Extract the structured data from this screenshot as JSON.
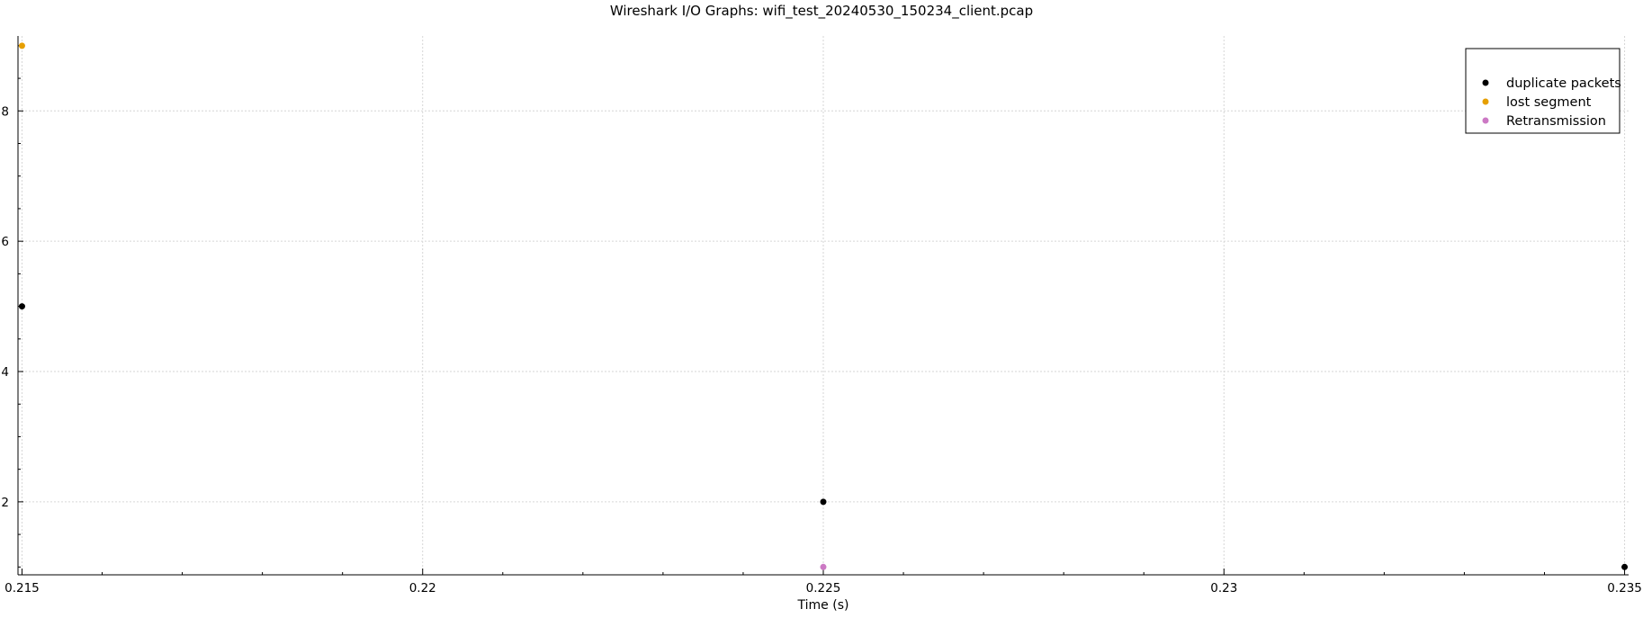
{
  "chart_data": {
    "type": "scatter",
    "title": "Wireshark I/O Graphs: wifi_test_20240530_150234_client.pcap",
    "xlabel": "Time (s)",
    "ylabel": "",
    "xlim": [
      0.21495,
      0.23505
    ],
    "ylim": [
      0.88,
      9.15
    ],
    "x_ticks": [
      0.215,
      0.22,
      0.225,
      0.23,
      0.235
    ],
    "x_tick_labels": [
      "0.215",
      "0.22",
      "0.225",
      "0.23",
      "0.235"
    ],
    "y_ticks": [
      2,
      4,
      6,
      8
    ],
    "y_tick_labels": [
      "2",
      "4",
      "6",
      "8"
    ],
    "grid": true,
    "legend_position": "top-right",
    "series": [
      {
        "name": "duplicate packets",
        "color": "#000000",
        "points": [
          [
            0.215,
            5
          ],
          [
            0.225,
            2
          ],
          [
            0.235,
            1
          ]
        ]
      },
      {
        "name": "lost segment",
        "color": "#e69f00",
        "points": [
          [
            0.215,
            9
          ]
        ]
      },
      {
        "name": "Retransmission",
        "color": "#cc79c4",
        "points": [
          [
            0.225,
            1
          ]
        ]
      }
    ]
  }
}
